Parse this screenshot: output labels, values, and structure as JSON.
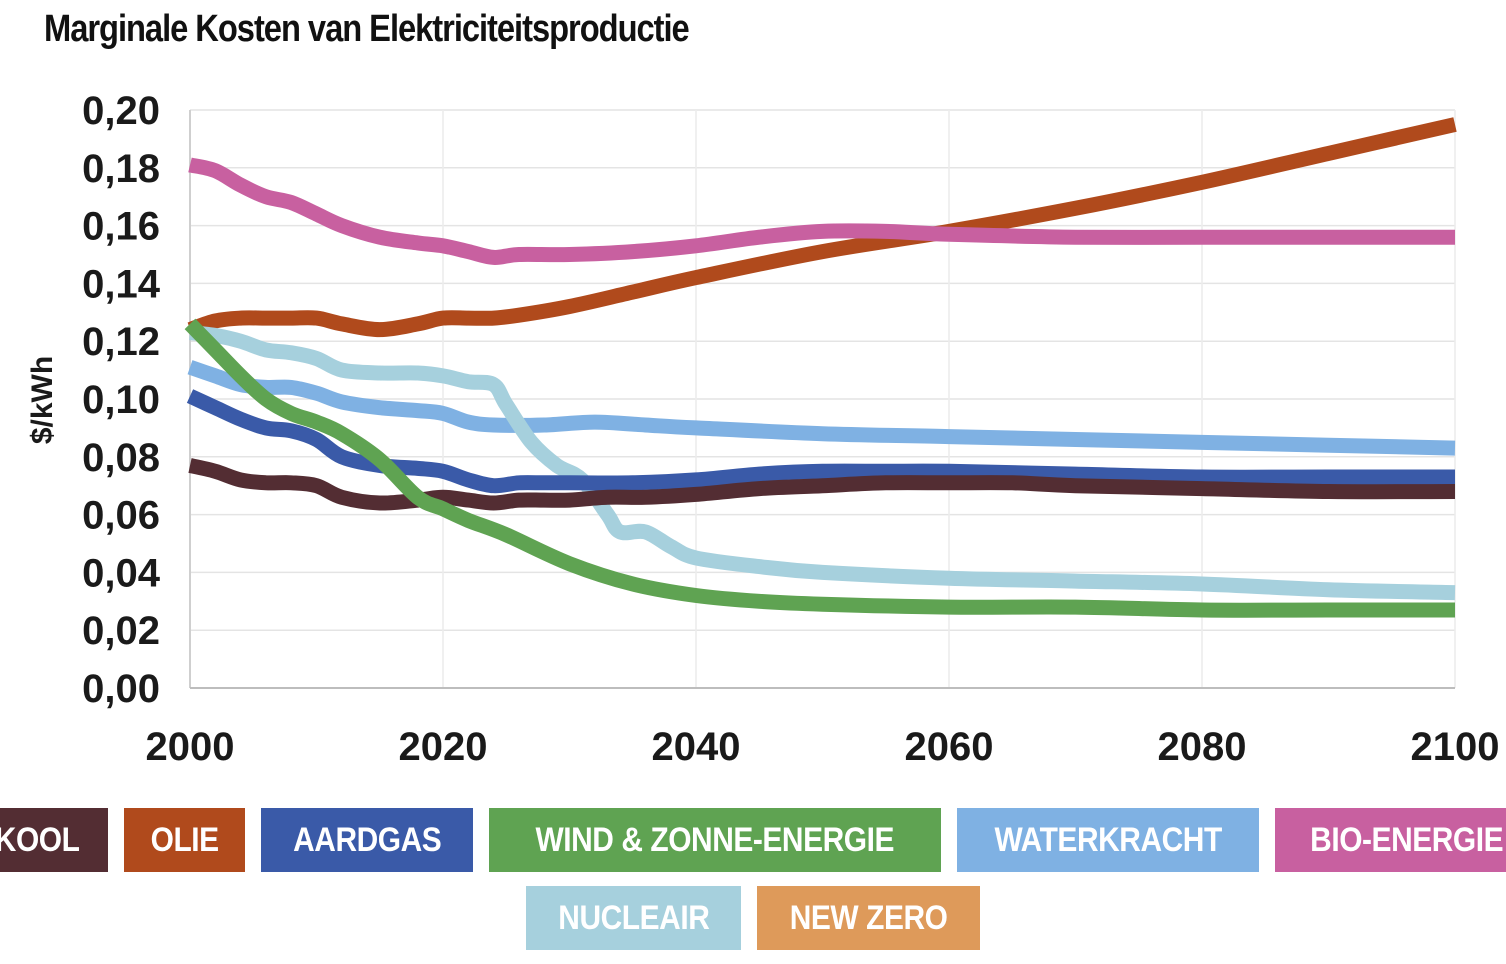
{
  "chart_data": {
    "type": "line",
    "title": "Marginale Kosten van Elektriciteitsproductie",
    "ylabel": "$/kWh",
    "xlabel": "",
    "xlim": [
      2000,
      2100
    ],
    "ylim": [
      0,
      0.2
    ],
    "x_ticks": [
      "2000",
      "2020",
      "2040",
      "2060",
      "2080",
      "2100"
    ],
    "y_ticks": [
      "0,00",
      "0,02",
      "0,04",
      "0,06",
      "0,08",
      "0,10",
      "0,12",
      "0,14",
      "0,16",
      "0,18",
      "0,20"
    ],
    "grid": true,
    "legend_position": "bottom",
    "series": [
      {
        "name": "KOOL",
        "color": "#532d33",
        "x": [
          2000,
          2002,
          2004,
          2006,
          2008,
          2010,
          2012,
          2015,
          2018,
          2020,
          2022,
          2024,
          2026,
          2028,
          2030,
          2033,
          2036,
          2040,
          2045,
          2050,
          2055,
          2060,
          2065,
          2070,
          2080,
          2090,
          2100
        ],
        "y": [
          0.077,
          0.075,
          0.072,
          0.071,
          0.071,
          0.07,
          0.066,
          0.064,
          0.065,
          0.066,
          0.065,
          0.064,
          0.065,
          0.065,
          0.065,
          0.066,
          0.066,
          0.067,
          0.069,
          0.07,
          0.071,
          0.071,
          0.071,
          0.07,
          0.069,
          0.068,
          0.068
        ]
      },
      {
        "name": "OLIE",
        "color": "#b04a1c",
        "x": [
          2000,
          2002,
          2004,
          2006,
          2008,
          2010,
          2012,
          2015,
          2018,
          2020,
          2022,
          2024,
          2026,
          2030,
          2035,
          2040,
          2050,
          2060,
          2070,
          2080,
          2090,
          2100
        ],
        "y": [
          0.124,
          0.127,
          0.128,
          0.128,
          0.128,
          0.128,
          0.126,
          0.124,
          0.126,
          0.128,
          0.128,
          0.128,
          0.129,
          0.132,
          0.137,
          0.142,
          0.151,
          0.158,
          0.166,
          0.175,
          0.185,
          0.195
        ]
      },
      {
        "name": "AARDGAS",
        "color": "#3a5aa8",
        "x": [
          2000,
          2002,
          2004,
          2006,
          2008,
          2010,
          2012,
          2015,
          2018,
          2020,
          2022,
          2024,
          2026,
          2028,
          2030,
          2035,
          2040,
          2045,
          2050,
          2055,
          2060,
          2070,
          2080,
          2090,
          2100
        ],
        "y": [
          0.101,
          0.097,
          0.093,
          0.09,
          0.089,
          0.086,
          0.08,
          0.077,
          0.076,
          0.075,
          0.072,
          0.07,
          0.071,
          0.071,
          0.071,
          0.071,
          0.072,
          0.074,
          0.075,
          0.075,
          0.075,
          0.074,
          0.073,
          0.073,
          0.073
        ]
      },
      {
        "name": "WIND & ZONNE-ENERGIE",
        "color": "#5fa352",
        "x": [
          2000,
          2002,
          2004,
          2006,
          2008,
          2010,
          2012,
          2015,
          2018,
          2020,
          2022,
          2025,
          2030,
          2035,
          2040,
          2045,
          2050,
          2060,
          2070,
          2080,
          2090,
          2100
        ],
        "y": [
          0.126,
          0.117,
          0.108,
          0.1,
          0.095,
          0.092,
          0.088,
          0.079,
          0.066,
          0.062,
          0.058,
          0.053,
          0.043,
          0.036,
          0.032,
          0.03,
          0.029,
          0.028,
          0.028,
          0.027,
          0.027,
          0.027
        ]
      },
      {
        "name": "WATERKRACHT",
        "color": "#7fb1e3",
        "x": [
          2000,
          2002,
          2004,
          2006,
          2008,
          2010,
          2012,
          2015,
          2018,
          2020,
          2022,
          2024,
          2028,
          2032,
          2036,
          2040,
          2050,
          2060,
          2070,
          2080,
          2090,
          2100
        ],
        "y": [
          0.111,
          0.108,
          0.105,
          0.104,
          0.104,
          0.102,
          0.099,
          0.097,
          0.096,
          0.095,
          0.092,
          0.091,
          0.091,
          0.092,
          0.091,
          0.09,
          0.088,
          0.087,
          0.086,
          0.085,
          0.084,
          0.083
        ]
      },
      {
        "name": "BIO-ENERGIE",
        "color": "#c860a0",
        "x": [
          2000,
          2002,
          2004,
          2006,
          2008,
          2010,
          2012,
          2015,
          2018,
          2020,
          2022,
          2024,
          2026,
          2030,
          2035,
          2040,
          2045,
          2050,
          2055,
          2060,
          2070,
          2080,
          2090,
          2100
        ],
        "y": [
          0.181,
          0.179,
          0.174,
          0.17,
          0.168,
          0.164,
          0.16,
          0.156,
          0.154,
          0.153,
          0.151,
          0.149,
          0.15,
          0.15,
          0.151,
          0.153,
          0.156,
          0.158,
          0.158,
          0.157,
          0.156,
          0.156,
          0.156,
          0.156
        ]
      },
      {
        "name": "NUCLEAIR",
        "color": "#a6d0dd",
        "x": [
          2000,
          2002,
          2004,
          2006,
          2008,
          2010,
          2012,
          2015,
          2018,
          2020,
          2022,
          2024,
          2025,
          2027,
          2029,
          2031,
          2033,
          2034,
          2036,
          2038,
          2040,
          2045,
          2050,
          2060,
          2070,
          2080,
          2090,
          2100
        ],
        "y": [
          0.123,
          0.122,
          0.12,
          0.117,
          0.116,
          0.114,
          0.11,
          0.109,
          0.109,
          0.108,
          0.106,
          0.105,
          0.098,
          0.085,
          0.077,
          0.072,
          0.06,
          0.054,
          0.054,
          0.049,
          0.045,
          0.042,
          0.04,
          0.038,
          0.037,
          0.036,
          0.034,
          0.033
        ]
      }
    ],
    "legend_rows": [
      [
        {
          "label": "KOOL",
          "color": "#532d33"
        },
        {
          "label": "OLIE",
          "color": "#b04a1c"
        },
        {
          "label": "AARDGAS",
          "color": "#3a5aa8"
        },
        {
          "label": "WIND & ZONNE-ENERGIE",
          "color": "#5fa352"
        },
        {
          "label": "WATERKRACHT",
          "color": "#7fb1e3"
        },
        {
          "label": "BIO-ENERGIE",
          "color": "#c860a0"
        }
      ],
      [
        {
          "label": "NUCLEAIR",
          "color": "#a6d0dd"
        },
        {
          "label": "NEW ZERO",
          "color": "#de9a5a"
        }
      ]
    ]
  }
}
